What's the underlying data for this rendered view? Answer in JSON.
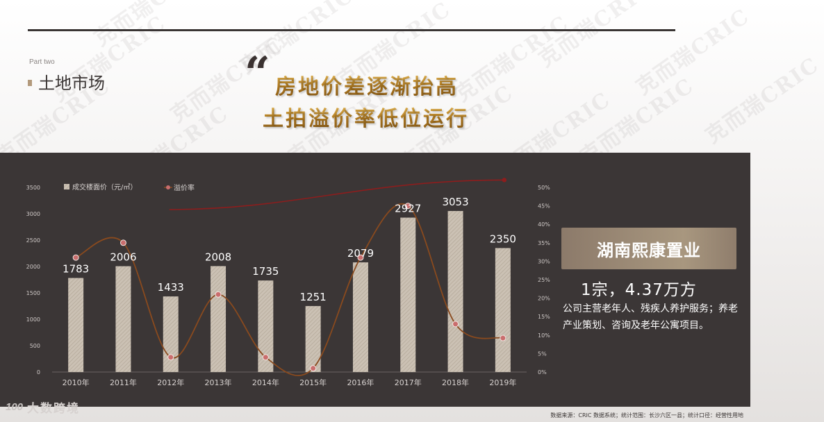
{
  "watermark_text": "克而瑞CRIC",
  "part_label": "Part two",
  "section_title": "土地市场",
  "quote_mark": "“",
  "headline": [
    "房地价差逐渐抬高",
    "土拍溢价率低位运行"
  ],
  "company": {
    "name": "湖南熙康置业",
    "stat": "1宗，4.37万方",
    "description": "公司主营老年人、残疾人养护服务；养老产业策划、咨询及老年公寓项目。"
  },
  "footer": {
    "logo_mark": "100",
    "logo_text": "大数跨境",
    "source": "数据来源：CRIC 数据系统；统计范围：长沙六区一县；统计口径：经营性用地"
  },
  "colors": {
    "panel_bg": "#3b3636",
    "bar_fill": "#c9bfb2",
    "line_color": "#8a4a1e",
    "marker_fill": "#c96d6d",
    "trend_color": "#8d1d1d",
    "headline_gold": "#b88a3a",
    "company_box": "#a8977f"
  },
  "chart_data": {
    "type": "bar",
    "categories": [
      "2010年",
      "2011年",
      "2012年",
      "2013年",
      "2014年",
      "2015年",
      "2016年",
      "2017年",
      "2018年",
      "2019年"
    ],
    "series": [
      {
        "name": "成交楼面价（元/㎡）",
        "type": "bar",
        "axis": "left",
        "values": [
          1783,
          2006,
          1433,
          2008,
          1735,
          1251,
          2079,
          2927,
          3053,
          2350
        ]
      },
      {
        "name": "溢价率",
        "type": "line",
        "axis": "right",
        "smooth": true,
        "values": [
          31,
          35,
          4,
          21,
          4,
          1,
          31,
          45,
          13,
          9.2
        ]
      }
    ],
    "y_left": {
      "ylim": [
        0,
        3500
      ],
      "ticks": [
        "0",
        "500",
        "1000",
        "1500",
        "2000",
        "2500",
        "3000",
        "3500"
      ]
    },
    "y_right": {
      "ylim": [
        0,
        50
      ],
      "ticks": [
        "0%",
        "5%",
        "10%",
        "15%",
        "20%",
        "25%",
        "30%",
        "35%",
        "40%",
        "45%",
        "50%"
      ]
    },
    "trend_arrow": {
      "start": 44,
      "end": 52
    },
    "legend_position": "top-left",
    "grid": false
  }
}
